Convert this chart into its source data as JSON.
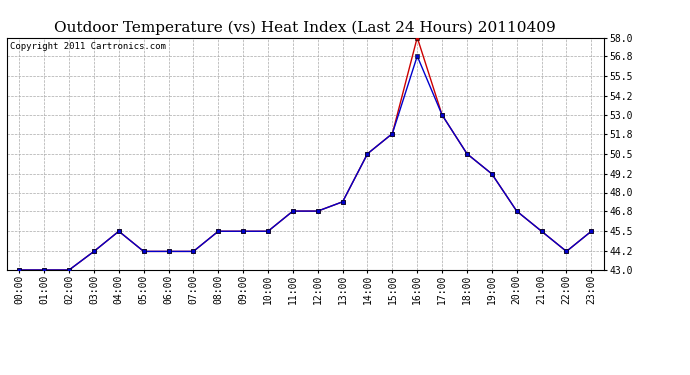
{
  "title": "Outdoor Temperature (vs) Heat Index (Last 24 Hours) 20110409",
  "copyright": "Copyright 2011 Cartronics.com",
  "x_labels": [
    "00:00",
    "01:00",
    "02:00",
    "03:00",
    "04:00",
    "05:00",
    "06:00",
    "07:00",
    "08:00",
    "09:00",
    "10:00",
    "11:00",
    "12:00",
    "13:00",
    "14:00",
    "15:00",
    "16:00",
    "17:00",
    "18:00",
    "19:00",
    "20:00",
    "21:00",
    "22:00",
    "23:00"
  ],
  "temp_data": [
    43.0,
    43.0,
    43.0,
    44.2,
    45.5,
    44.2,
    44.2,
    44.2,
    45.5,
    45.5,
    45.5,
    46.8,
    46.8,
    47.4,
    50.5,
    51.8,
    58.0,
    53.0,
    50.5,
    49.2,
    46.8,
    45.5,
    44.2,
    45.5
  ],
  "heat_data": [
    43.0,
    43.0,
    43.0,
    44.2,
    45.5,
    44.2,
    44.2,
    44.2,
    45.5,
    45.5,
    45.5,
    46.8,
    46.8,
    47.4,
    50.5,
    51.8,
    56.8,
    53.0,
    50.5,
    49.2,
    46.8,
    45.5,
    44.2,
    45.5
  ],
  "temp_color": "#cc0000",
  "heat_color": "#0000cc",
  "bg_color": "#ffffff",
  "grid_color": "#aaaaaa",
  "ylim_min": 43.0,
  "ylim_max": 58.0,
  "yticks": [
    43.0,
    44.2,
    45.5,
    46.8,
    48.0,
    49.2,
    50.5,
    51.8,
    53.0,
    54.2,
    55.5,
    56.8,
    58.0
  ],
  "title_fontsize": 11,
  "copyright_fontsize": 6.5,
  "tick_fontsize": 7
}
